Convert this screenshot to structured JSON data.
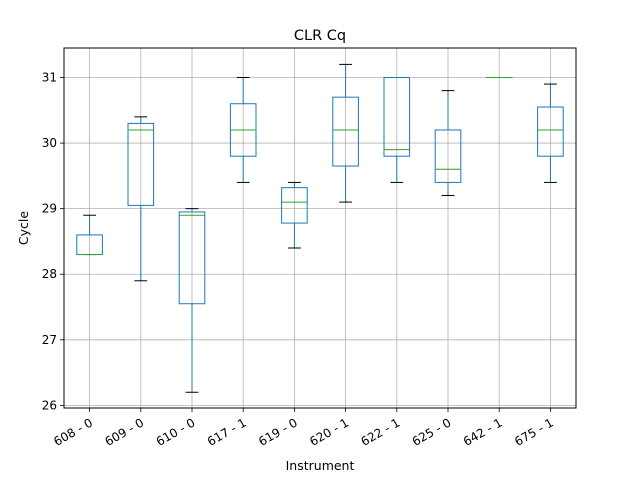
{
  "chart_data": {
    "type": "box",
    "title": "CLR Cq",
    "xlabel": "Instrument",
    "ylabel": "Cycle",
    "ylim": [
      25.96,
      31.45
    ],
    "yticks": [
      26,
      27,
      28,
      29,
      30,
      31
    ],
    "grid": true,
    "categories": [
      "608 - 0",
      "609 - 0",
      "610 - 0",
      "617 - 1",
      "619 - 0",
      "620 - 1",
      "622 - 1",
      "625 - 0",
      "642 - 1",
      "675 - 1"
    ],
    "boxes": [
      {
        "min": 28.3,
        "q1": 28.3,
        "median": 28.3,
        "q3": 28.6,
        "max": 28.9
      },
      {
        "min": 27.9,
        "q1": 29.05,
        "median": 30.2,
        "q3": 30.3,
        "max": 30.4
      },
      {
        "min": 26.2,
        "q1": 27.55,
        "median": 28.9,
        "q3": 28.95,
        "max": 29.0
      },
      {
        "min": 29.4,
        "q1": 29.8,
        "median": 30.2,
        "q3": 30.6,
        "max": 31.0
      },
      {
        "min": 28.4,
        "q1": 28.78,
        "median": 29.1,
        "q3": 29.32,
        "max": 29.4
      },
      {
        "min": 29.1,
        "q1": 29.65,
        "median": 30.2,
        "q3": 30.7,
        "max": 31.2
      },
      {
        "min": 29.4,
        "q1": 29.8,
        "median": 29.9,
        "q3": 31.0,
        "max": 31.0
      },
      {
        "min": 29.2,
        "q1": 29.4,
        "median": 29.6,
        "q3": 30.2,
        "max": 30.8
      },
      {
        "min": 31.0,
        "q1": 31.0,
        "median": 31.0,
        "q3": 31.0,
        "max": 31.0
      },
      {
        "min": 29.4,
        "q1": 29.8,
        "median": 30.2,
        "q3": 30.55,
        "max": 30.9
      }
    ],
    "colors": {
      "box": "#1f77b4",
      "median": "#2ca02c",
      "whisker": "#1f77b4",
      "cap": "#000000",
      "grid": "#b0b0b0"
    }
  }
}
